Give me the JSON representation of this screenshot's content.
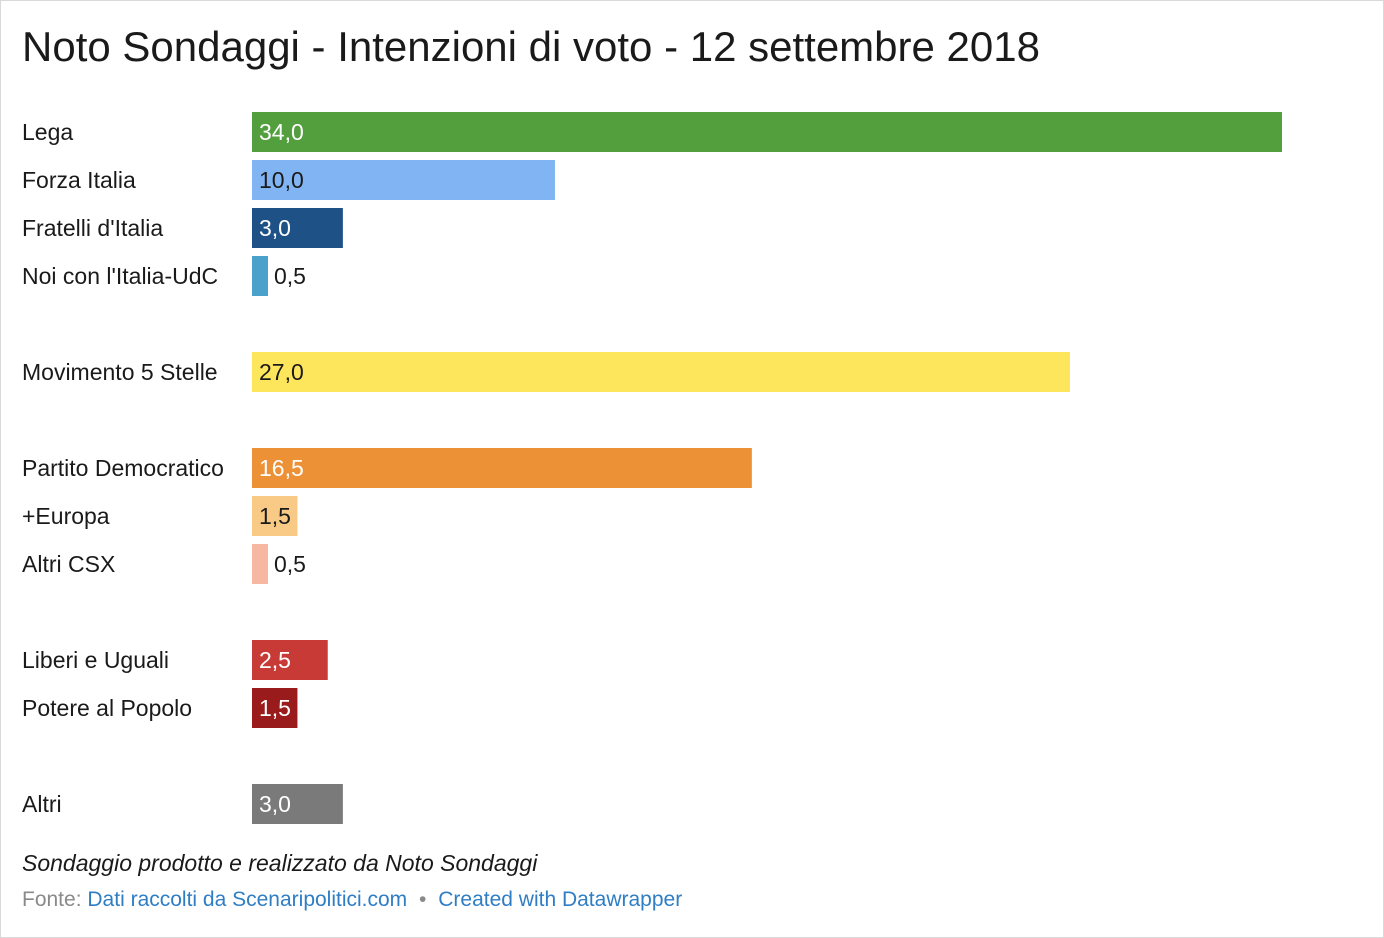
{
  "header": {
    "title": "Noto Sondaggi - Intenzioni di voto - 12 settembre 2018"
  },
  "chart_data": {
    "type": "bar",
    "orientation": "horizontal",
    "title": "Noto Sondaggi - Intenzioni di voto - 12 settembre 2018",
    "xlabel": "",
    "ylabel": "",
    "xlim": [
      0,
      34
    ],
    "grid": false,
    "legend": "none",
    "categories": [
      "Lega",
      "Forza Italia",
      "Fratelli d'Italia",
      "Noi con l'Italia-UdC",
      "Movimento 5 Stelle",
      "Partito Democratico",
      "+Europa",
      "Altri CSX",
      "Liberi e Uguali",
      "Potere al Popolo",
      "Altri"
    ],
    "values": [
      34.0,
      10.0,
      3.0,
      0.5,
      27.0,
      16.5,
      1.5,
      0.5,
      2.5,
      1.5,
      3.0
    ],
    "value_labels": [
      "34,0",
      "10,0",
      "3,0",
      "0,5",
      "27,0",
      "16,5",
      "1,5",
      "0,5",
      "2,5",
      "1,5",
      "3,0"
    ],
    "colors": [
      "#539e3d",
      "#80b4f2",
      "#1e5185",
      "#4aa1cb",
      "#fde65b",
      "#ed9137",
      "#f8ca86",
      "#f6b8a0",
      "#c83a35",
      "#991b1b",
      "#7a7a7a"
    ],
    "label_colors": [
      "#ffffff",
      "#1a1a1a",
      "#ffffff",
      "#1a1a1a",
      "#1a1a1a",
      "#ffffff",
      "#1a1a1a",
      "#1a1a1a",
      "#ffffff",
      "#ffffff",
      "#ffffff"
    ],
    "groups": [
      [
        0,
        1,
        2,
        3
      ],
      [
        4
      ],
      [
        5,
        6,
        7
      ],
      [
        8,
        9
      ],
      [
        10
      ]
    ]
  },
  "footer": {
    "note": "Sondaggio prodotto e realizzato da Noto Sondaggi",
    "source_prefix": "Fonte:",
    "source_link": "Dati raccolti da Scenaripolitici.com",
    "separator": "•",
    "credit_link": "Created with Datawrapper"
  }
}
